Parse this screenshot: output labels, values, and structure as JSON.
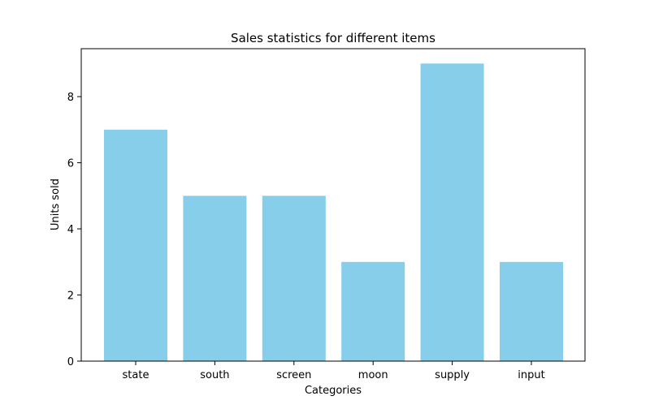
{
  "chart_data": {
    "type": "bar",
    "title": "Sales statistics for different items",
    "xlabel": "Categories",
    "ylabel": "Units sold",
    "categories": [
      "state",
      "south",
      "screen",
      "moon",
      "supply",
      "input"
    ],
    "values": [
      7,
      5,
      5,
      3,
      9,
      3
    ],
    "ylim": [
      0,
      9.45
    ],
    "yticks": [
      0,
      2,
      4,
      6,
      8
    ],
    "bar_color": "#87CEEB",
    "grid": false,
    "legend": "none"
  }
}
